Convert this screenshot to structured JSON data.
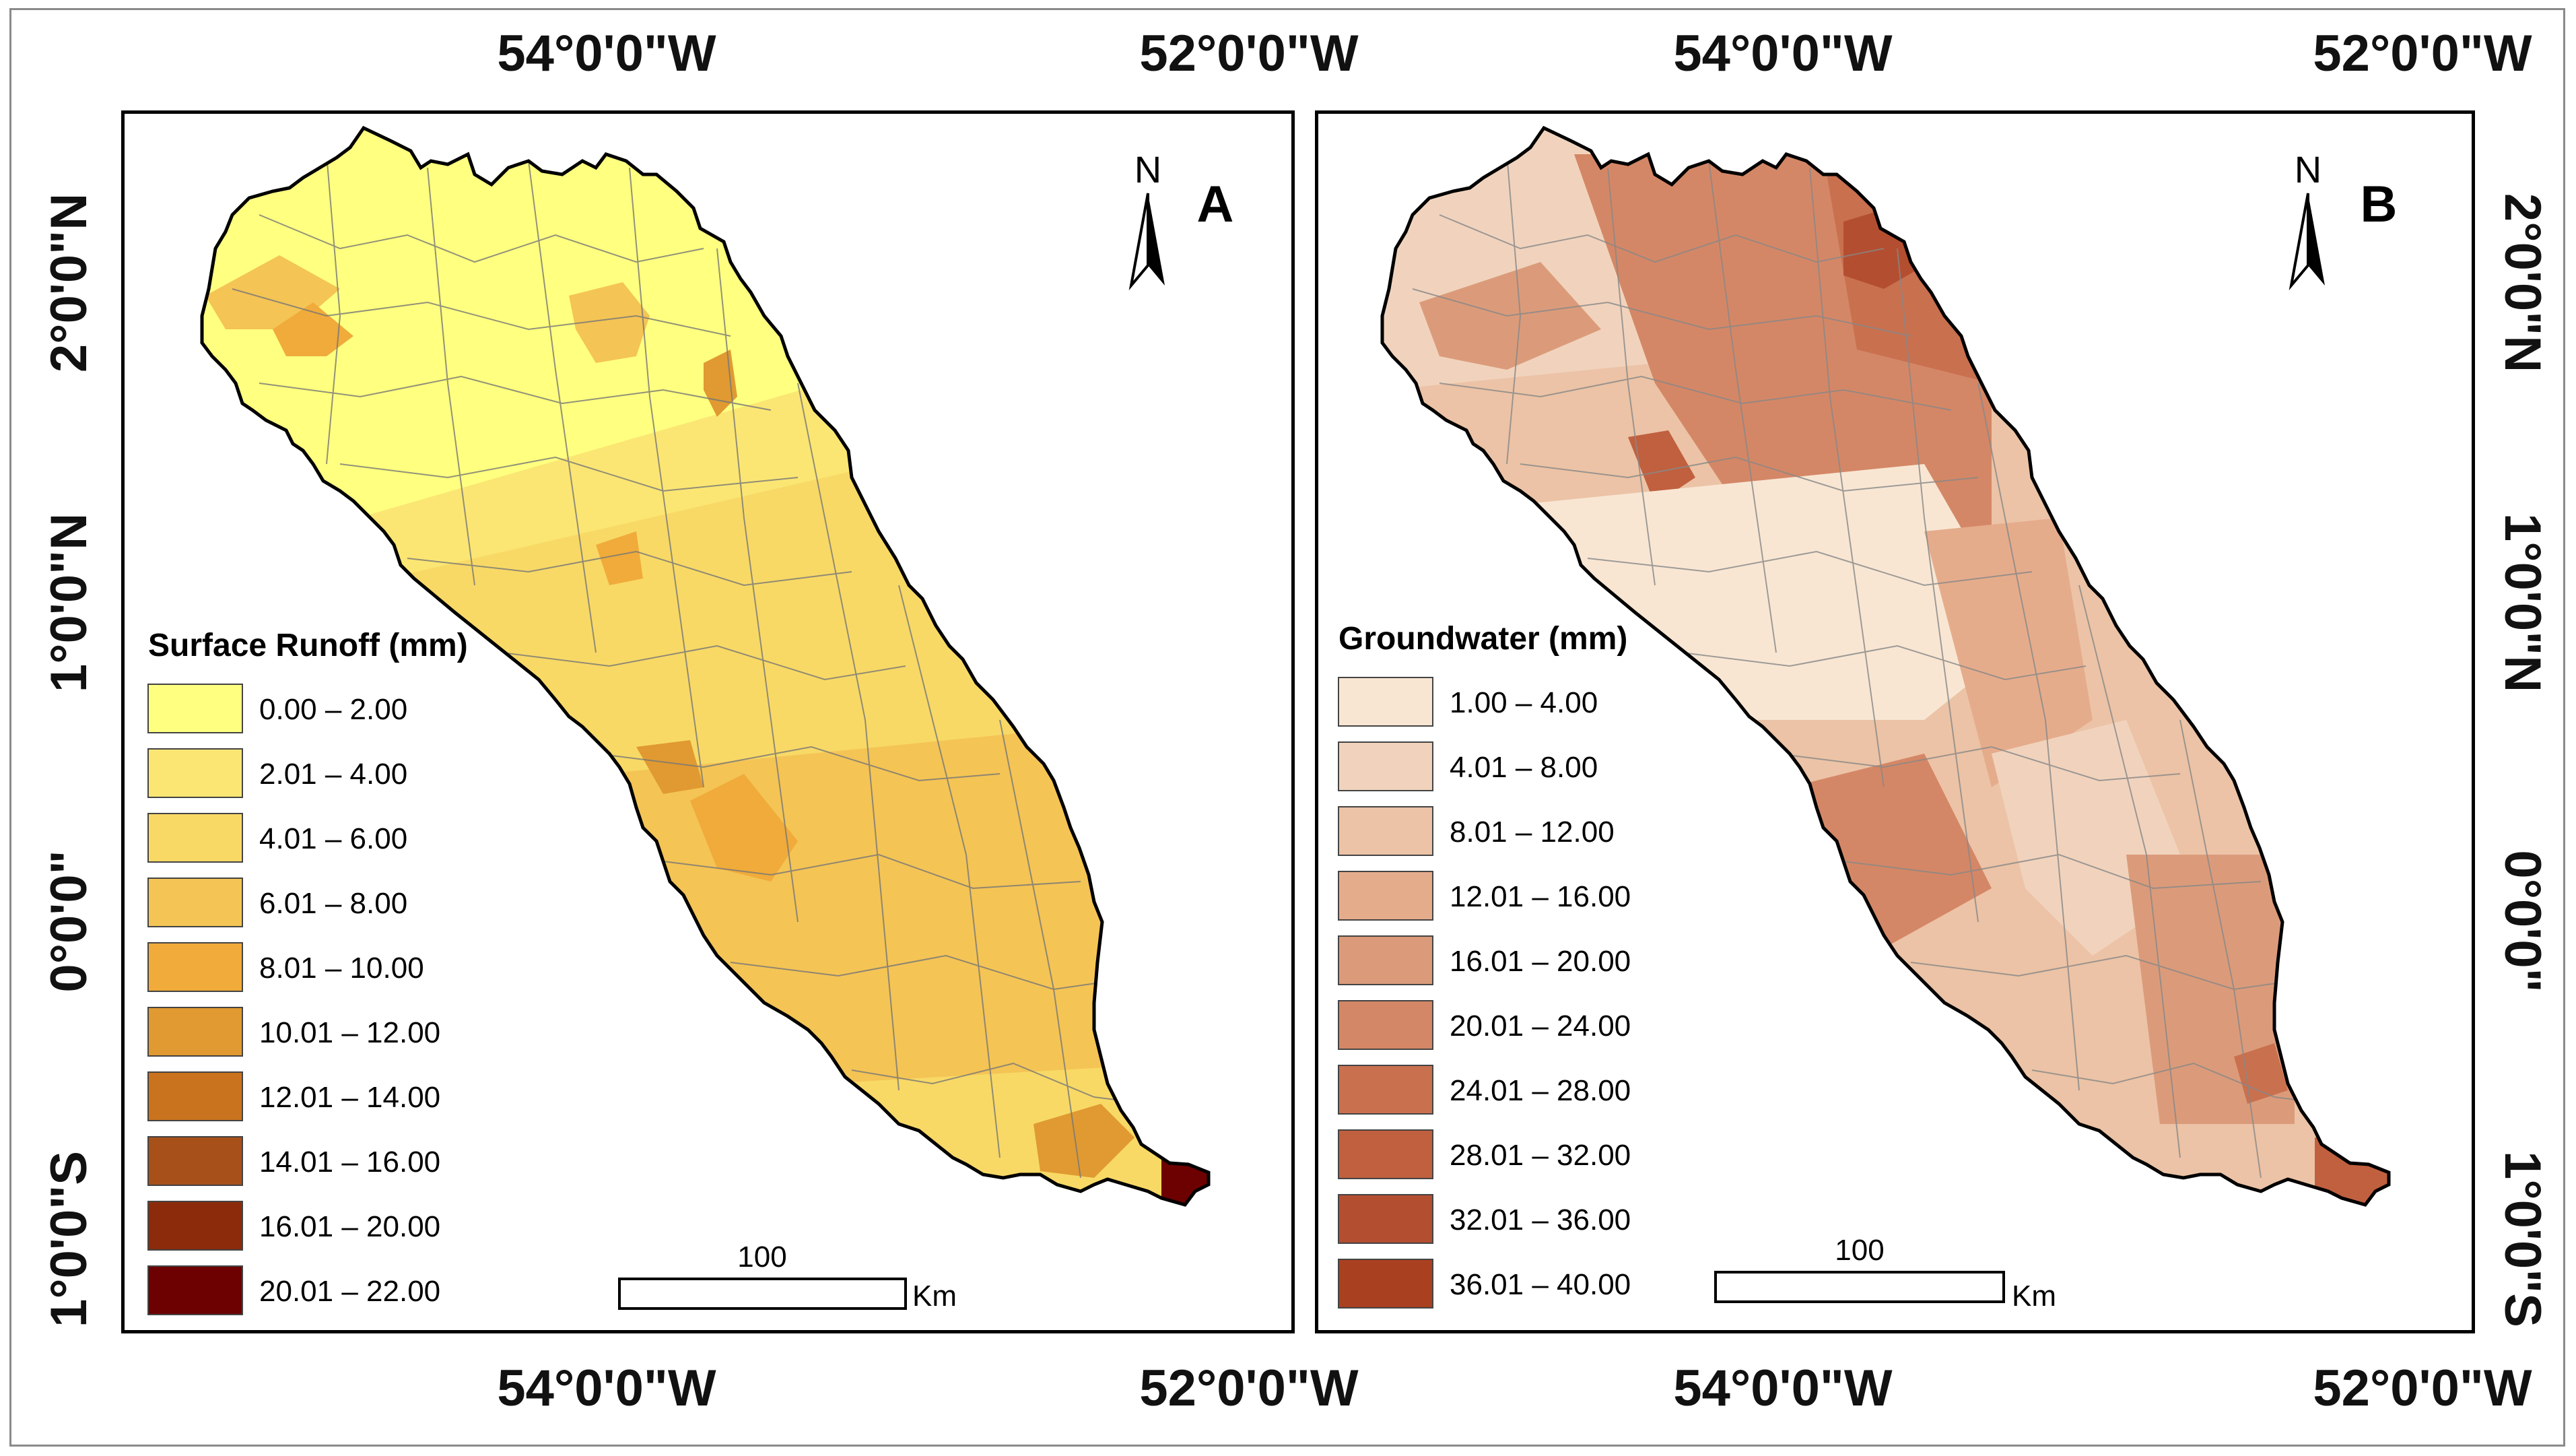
{
  "coordinates": {
    "top": [
      "54°0'0\"W",
      "52°0'0\"W",
      "54°0'0\"W",
      "52°0'0\"W"
    ],
    "bottom": [
      "54°0'0\"W",
      "52°0'0\"W",
      "54°0'0\"W",
      "52°0'0\"W"
    ],
    "left": [
      "2°0'0\"N",
      "1°0'0\"N",
      "0°0'0\"",
      "1°0'0\"S"
    ],
    "right": [
      "2°0'0\"N",
      "1°0'0\"N",
      "0°0'0\"",
      "1°0'0\"S"
    ]
  },
  "panels": [
    {
      "panel_label": "A",
      "north_label": "N",
      "legend": {
        "title": "Surface Runoff (mm)",
        "classes": [
          {
            "label": "0.00 – 2.00",
            "color": "#ffff80"
          },
          {
            "label": "2.01 – 4.00",
            "color": "#fbe673"
          },
          {
            "label": "4.01 – 6.00",
            "color": "#f8d966"
          },
          {
            "label": "6.01 – 8.00",
            "color": "#f4c455"
          },
          {
            "label": "8.01 – 10.00",
            "color": "#f0ab3a"
          },
          {
            "label": "10.01 – 12.00",
            "color": "#e09a31"
          },
          {
            "label": "12.01 – 14.00",
            "color": "#c9731e"
          },
          {
            "label": "14.01 – 16.00",
            "color": "#a7501a"
          },
          {
            "label": "16.01 – 20.00",
            "color": "#8c2b0b"
          },
          {
            "label": "20.01 – 22.00",
            "color": "#6d0000"
          }
        ]
      },
      "scale_bar": {
        "value": "100",
        "unit": "Km"
      }
    },
    {
      "panel_label": "B",
      "north_label": "N",
      "legend": {
        "title": "Groundwater (mm)",
        "classes": [
          {
            "label": "1.00 – 4.00",
            "color": "#f8e6d3"
          },
          {
            "label": "4.01 – 8.00",
            "color": "#f1d3bd"
          },
          {
            "label": "8.01 – 12.00",
            "color": "#ecc3a6"
          },
          {
            "label": "12.01 – 16.00",
            "color": "#e5ac8c"
          },
          {
            "label": "16.01 – 20.00",
            "color": "#db9b7a"
          },
          {
            "label": "20.01 – 24.00",
            "color": "#d48766"
          },
          {
            "label": "24.01 – 28.00",
            "color": "#c9704f"
          },
          {
            "label": "28.01 – 32.00",
            "color": "#c0603f"
          },
          {
            "label": "32.01 – 36.00",
            "color": "#b44e31"
          },
          {
            "label": "36.01 – 40.00",
            "color": "#a9401f"
          }
        ]
      },
      "scale_bar": {
        "value": "100",
        "unit": "Km"
      }
    }
  ]
}
